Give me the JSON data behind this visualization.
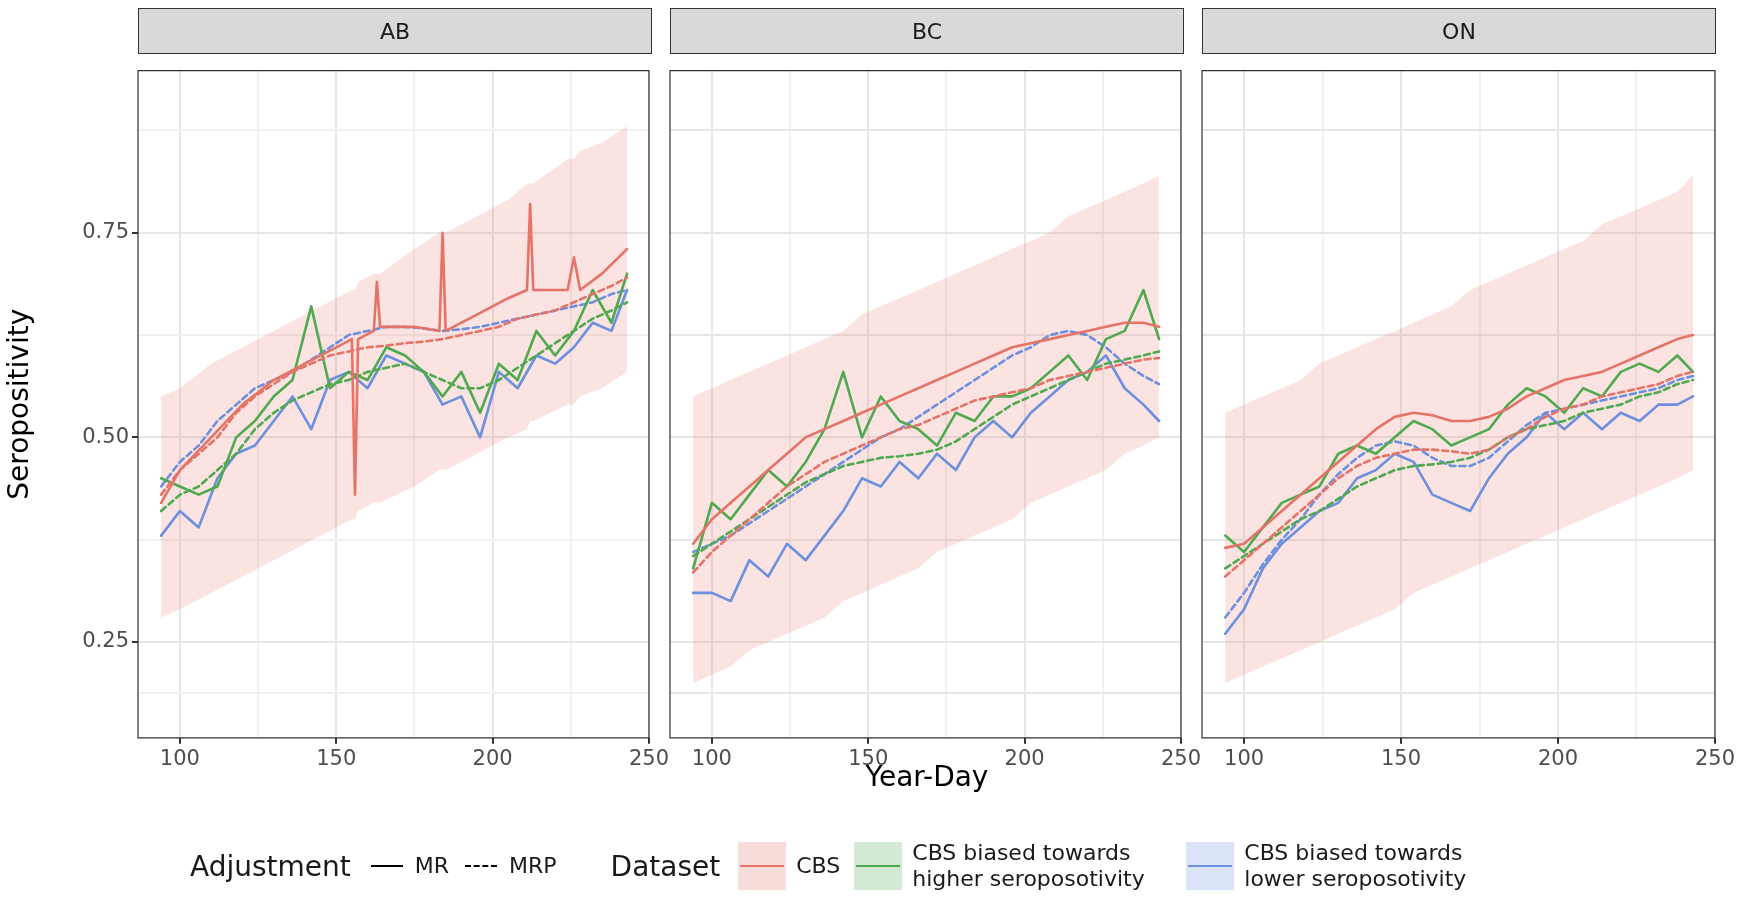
{
  "chart_data": [
    {
      "type": "line",
      "title": "AB",
      "ylabel": "Seropositivity",
      "legend": "bottom",
      "xlim": [
        86.6,
        250
      ],
      "xticks": [
        100,
        {
          "value": 125,
          "label": null
        },
        150,
        {
          "value": 175,
          "label": null
        },
        200,
        {
          "value": 225,
          "label": null
        },
        250
      ],
      "ylim": [
        0.133,
        0.948
      ],
      "yticks": [
        {
          "value": 0.1875,
          "label": null
        },
        0.25,
        {
          "value": 0.375,
          "label": null
        },
        {
          "value": 0.5,
          "label": "0.50"
        },
        {
          "value": 0.625,
          "label": null
        },
        0.75,
        {
          "value": 0.875,
          "label": null
        }
      ],
      "grid": true,
      "x": [
        94,
        100,
        106,
        112,
        118,
        124,
        130,
        136,
        142,
        148,
        154,
        160,
        166,
        172,
        178,
        184,
        190,
        196,
        202,
        208,
        214,
        220,
        226,
        232,
        238,
        243
      ],
      "series": [
        {
          "name": "CBS",
          "color": "#e57368",
          "line_style": "solid",
          "x": [
            94,
            100,
            110,
            120,
            130,
            140,
            150,
            155,
            156,
            157,
            162,
            163,
            164,
            175,
            183,
            184,
            185,
            195,
            205,
            211,
            212,
            213,
            224,
            226,
            228,
            235,
            243
          ],
          "values": [
            0.42,
            0.46,
            0.5,
            0.54,
            0.57,
            0.59,
            0.61,
            0.62,
            0.43,
            0.62,
            0.63,
            0.69,
            0.635,
            0.635,
            0.63,
            0.75,
            0.63,
            0.65,
            0.67,
            0.68,
            0.785,
            0.68,
            0.68,
            0.72,
            0.68,
            0.7,
            0.73
          ],
          "lower": [
            0.28,
            0.29,
            0.31,
            0.33,
            0.35,
            0.37,
            0.39,
            0.4,
            0.4,
            0.41,
            0.42,
            0.42,
            0.42,
            0.44,
            0.46,
            0.46,
            0.46,
            0.48,
            0.5,
            0.51,
            0.52,
            0.52,
            0.54,
            0.54,
            0.55,
            0.56,
            0.58
          ],
          "upper": [
            0.55,
            0.56,
            0.59,
            0.61,
            0.63,
            0.65,
            0.67,
            0.68,
            0.68,
            0.69,
            0.7,
            0.7,
            0.7,
            0.73,
            0.75,
            0.75,
            0.75,
            0.77,
            0.79,
            0.81,
            0.81,
            0.81,
            0.84,
            0.84,
            0.85,
            0.86,
            0.88
          ]
        },
        {
          "color": "#e57368",
          "line_style": "dashed",
          "values": [
            0.43,
            0.46,
            0.48,
            0.5,
            0.53,
            0.55,
            0.565,
            0.58,
            0.59,
            0.6,
            0.605,
            0.61,
            0.612,
            0.615,
            0.617,
            0.62,
            0.625,
            0.63,
            0.635,
            0.645,
            0.65,
            0.655,
            0.665,
            0.675,
            0.685,
            0.695
          ]
        },
        {
          "name": "CBS biased towards higher seroposotivity",
          "color": "#4ea94f",
          "line_style": "solid",
          "values": [
            0.45,
            0.44,
            0.43,
            0.44,
            0.5,
            0.52,
            0.55,
            0.57,
            0.66,
            0.56,
            0.58,
            0.57,
            0.61,
            0.6,
            0.58,
            0.55,
            0.58,
            0.53,
            0.59,
            0.57,
            0.63,
            0.6,
            0.63,
            0.68,
            0.64,
            0.7
          ]
        },
        {
          "color": "#4ea94f",
          "line_style": "dashed",
          "values": [
            0.41,
            0.43,
            0.44,
            0.46,
            0.48,
            0.51,
            0.53,
            0.545,
            0.555,
            0.565,
            0.57,
            0.58,
            0.585,
            0.59,
            0.58,
            0.57,
            0.56,
            0.56,
            0.57,
            0.585,
            0.6,
            0.615,
            0.63,
            0.645,
            0.655,
            0.665
          ]
        },
        {
          "name": "CBS biased towards lower seroposotivity",
          "color": "#6c8fde",
          "line_style": "solid",
          "values": [
            0.38,
            0.41,
            0.39,
            0.45,
            0.48,
            0.49,
            0.52,
            0.55,
            0.51,
            0.57,
            0.58,
            0.56,
            0.6,
            0.59,
            0.58,
            0.54,
            0.55,
            0.5,
            0.58,
            0.56,
            0.6,
            0.59,
            0.61,
            0.64,
            0.63,
            0.68
          ]
        },
        {
          "color": "#6c8fde",
          "line_style": "dashed",
          "values": [
            0.44,
            0.47,
            0.49,
            0.52,
            0.54,
            0.56,
            0.57,
            0.58,
            0.595,
            0.61,
            0.625,
            0.63,
            0.635,
            0.635,
            0.633,
            0.63,
            0.632,
            0.635,
            0.64,
            0.645,
            0.65,
            0.655,
            0.66,
            0.665,
            0.675,
            0.68
          ]
        }
      ]
    },
    {
      "type": "line",
      "title": "BC",
      "xlabel": "Year-Day",
      "legend": "bottom",
      "legend_title": "Dataset",
      "annotations": [
        "Adjustment",
        "MR",
        "MRP"
      ],
      "tick_labels": "x",
      "xlim": [
        86.6,
        250
      ],
      "xticks": [
        100,
        {
          "value": 125,
          "label": null
        },
        150,
        {
          "value": 175,
          "label": null
        },
        200,
        {
          "value": 225,
          "label": null
        },
        250
      ],
      "ylim": [
        0.133,
        0.948
      ],
      "yticks": [
        0.1875,
        0.25,
        0.375,
        0.5,
        0.625,
        0.75,
        0.875
      ],
      "grid": true,
      "x": [
        94,
        100,
        106,
        112,
        118,
        124,
        130,
        136,
        142,
        148,
        154,
        160,
        166,
        172,
        178,
        184,
        190,
        196,
        202,
        208,
        214,
        220,
        226,
        232,
        238,
        243
      ],
      "series": [
        {
          "name": "CBS",
          "color": "#e57368",
          "line_style": "solid",
          "values": [
            0.37,
            0.4,
            0.42,
            0.44,
            0.46,
            0.48,
            0.5,
            0.51,
            0.52,
            0.53,
            0.54,
            0.55,
            0.56,
            0.57,
            0.58,
            0.59,
            0.6,
            0.61,
            0.615,
            0.62,
            0.625,
            0.63,
            0.635,
            0.64,
            0.64,
            0.635
          ],
          "lower": [
            0.2,
            0.21,
            0.22,
            0.24,
            0.25,
            0.26,
            0.27,
            0.28,
            0.3,
            0.31,
            0.32,
            0.33,
            0.34,
            0.36,
            0.37,
            0.38,
            0.39,
            0.4,
            0.42,
            0.43,
            0.44,
            0.45,
            0.46,
            0.48,
            0.49,
            0.5
          ],
          "upper": [
            0.55,
            0.56,
            0.57,
            0.58,
            0.59,
            0.6,
            0.61,
            0.62,
            0.63,
            0.65,
            0.66,
            0.67,
            0.68,
            0.69,
            0.7,
            0.71,
            0.72,
            0.73,
            0.74,
            0.75,
            0.77,
            0.78,
            0.79,
            0.8,
            0.81,
            0.82
          ]
        },
        {
          "color": "#e57368",
          "line_style": "dashed",
          "values": [
            0.335,
            0.36,
            0.38,
            0.4,
            0.42,
            0.44,
            0.455,
            0.47,
            0.48,
            0.49,
            0.5,
            0.51,
            0.515,
            0.525,
            0.535,
            0.545,
            0.55,
            0.555,
            0.56,
            0.57,
            0.575,
            0.58,
            0.585,
            0.59,
            0.595,
            0.597
          ]
        },
        {
          "name": "CBS biased towards higher seroposotivity",
          "color": "#4ea94f",
          "line_style": "solid",
          "values": [
            0.34,
            0.42,
            0.4,
            0.43,
            0.46,
            0.44,
            0.47,
            0.51,
            0.58,
            0.5,
            0.55,
            0.52,
            0.51,
            0.49,
            0.53,
            0.52,
            0.55,
            0.55,
            0.56,
            0.58,
            0.6,
            0.57,
            0.62,
            0.63,
            0.68,
            0.62
          ]
        },
        {
          "color": "#4ea94f",
          "line_style": "dashed",
          "values": [
            0.355,
            0.37,
            0.385,
            0.4,
            0.415,
            0.43,
            0.445,
            0.455,
            0.465,
            0.47,
            0.475,
            0.477,
            0.48,
            0.485,
            0.495,
            0.51,
            0.525,
            0.54,
            0.55,
            0.56,
            0.57,
            0.58,
            0.59,
            0.595,
            0.6,
            0.605
          ]
        },
        {
          "name": "CBS biased towards lower seroposotivity",
          "color": "#6c8fde",
          "line_style": "solid",
          "values": [
            0.31,
            0.31,
            0.3,
            0.35,
            0.33,
            0.37,
            0.35,
            0.38,
            0.41,
            0.45,
            0.44,
            0.47,
            0.45,
            0.48,
            0.46,
            0.5,
            0.52,
            0.5,
            0.53,
            0.55,
            0.57,
            0.58,
            0.6,
            0.56,
            0.54,
            0.52
          ]
        },
        {
          "color": "#6c8fde",
          "line_style": "dashed",
          "values": [
            0.36,
            0.37,
            0.38,
            0.395,
            0.41,
            0.425,
            0.44,
            0.455,
            0.47,
            0.485,
            0.5,
            0.51,
            0.525,
            0.54,
            0.555,
            0.57,
            0.585,
            0.6,
            0.61,
            0.625,
            0.63,
            0.625,
            0.61,
            0.59,
            0.575,
            0.565
          ]
        }
      ]
    },
    {
      "type": "line",
      "title": "ON",
      "tick_labels": "x",
      "legend": "bottom",
      "xlim": [
        86.6,
        250
      ],
      "xticks": [
        100,
        {
          "value": 125,
          "label": null
        },
        150,
        {
          "value": 175,
          "label": null
        },
        200,
        {
          "value": 225,
          "label": null
        },
        250
      ],
      "ylim": [
        0.133,
        0.948
      ],
      "yticks": [
        0.1875,
        0.25,
        0.375,
        0.5,
        0.625,
        0.75,
        0.875
      ],
      "grid": true,
      "x": [
        94,
        100,
        106,
        112,
        118,
        124,
        130,
        136,
        142,
        148,
        154,
        160,
        166,
        172,
        178,
        184,
        190,
        196,
        202,
        208,
        214,
        220,
        226,
        232,
        238,
        243
      ],
      "series": [
        {
          "name": "CBS",
          "color": "#e57368",
          "line_style": "solid",
          "values": [
            0.365,
            0.37,
            0.39,
            0.41,
            0.43,
            0.45,
            0.47,
            0.49,
            0.51,
            0.525,
            0.53,
            0.527,
            0.52,
            0.52,
            0.525,
            0.535,
            0.55,
            0.56,
            0.57,
            0.575,
            0.58,
            0.59,
            0.6,
            0.61,
            0.62,
            0.625
          ],
          "lower": [
            0.2,
            0.21,
            0.22,
            0.23,
            0.24,
            0.25,
            0.26,
            0.27,
            0.28,
            0.29,
            0.31,
            0.32,
            0.33,
            0.34,
            0.35,
            0.36,
            0.37,
            0.38,
            0.39,
            0.4,
            0.41,
            0.42,
            0.43,
            0.44,
            0.45,
            0.46
          ],
          "upper": [
            0.53,
            0.54,
            0.55,
            0.56,
            0.57,
            0.59,
            0.6,
            0.61,
            0.62,
            0.63,
            0.64,
            0.65,
            0.66,
            0.68,
            0.69,
            0.7,
            0.71,
            0.72,
            0.73,
            0.74,
            0.76,
            0.77,
            0.78,
            0.79,
            0.8,
            0.82
          ]
        },
        {
          "color": "#e57368",
          "line_style": "dashed",
          "values": [
            0.33,
            0.35,
            0.37,
            0.39,
            0.41,
            0.43,
            0.45,
            0.465,
            0.475,
            0.48,
            0.485,
            0.485,
            0.483,
            0.48,
            0.485,
            0.5,
            0.51,
            0.525,
            0.535,
            0.54,
            0.55,
            0.555,
            0.56,
            0.565,
            0.575,
            0.58
          ]
        },
        {
          "name": "CBS biased towards higher seroposotivity",
          "color": "#4ea94f",
          "line_style": "solid",
          "values": [
            0.38,
            0.36,
            0.39,
            0.42,
            0.43,
            0.44,
            0.48,
            0.49,
            0.48,
            0.5,
            0.52,
            0.51,
            0.49,
            0.5,
            0.51,
            0.54,
            0.56,
            0.55,
            0.53,
            0.56,
            0.55,
            0.58,
            0.59,
            0.58,
            0.6,
            0.58
          ]
        },
        {
          "color": "#4ea94f",
          "line_style": "dashed",
          "values": [
            0.34,
            0.355,
            0.37,
            0.385,
            0.4,
            0.41,
            0.425,
            0.44,
            0.45,
            0.46,
            0.465,
            0.467,
            0.47,
            0.475,
            0.485,
            0.5,
            0.51,
            0.515,
            0.52,
            0.53,
            0.535,
            0.54,
            0.55,
            0.555,
            0.565,
            0.57
          ]
        },
        {
          "name": "CBS biased towards lower seroposotivity",
          "color": "#6c8fde",
          "line_style": "solid",
          "values": [
            0.26,
            0.29,
            0.34,
            0.37,
            0.39,
            0.41,
            0.42,
            0.45,
            0.46,
            0.48,
            0.47,
            0.43,
            0.42,
            0.41,
            0.45,
            0.48,
            0.5,
            0.53,
            0.51,
            0.53,
            0.51,
            0.53,
            0.52,
            0.54,
            0.54,
            0.55
          ]
        },
        {
          "color": "#6c8fde",
          "line_style": "dashed",
          "values": [
            0.28,
            0.31,
            0.345,
            0.375,
            0.4,
            0.43,
            0.455,
            0.475,
            0.49,
            0.495,
            0.49,
            0.475,
            0.465,
            0.465,
            0.475,
            0.495,
            0.515,
            0.53,
            0.535,
            0.54,
            0.545,
            0.55,
            0.555,
            0.56,
            0.57,
            0.575
          ]
        }
      ]
    }
  ]
}
